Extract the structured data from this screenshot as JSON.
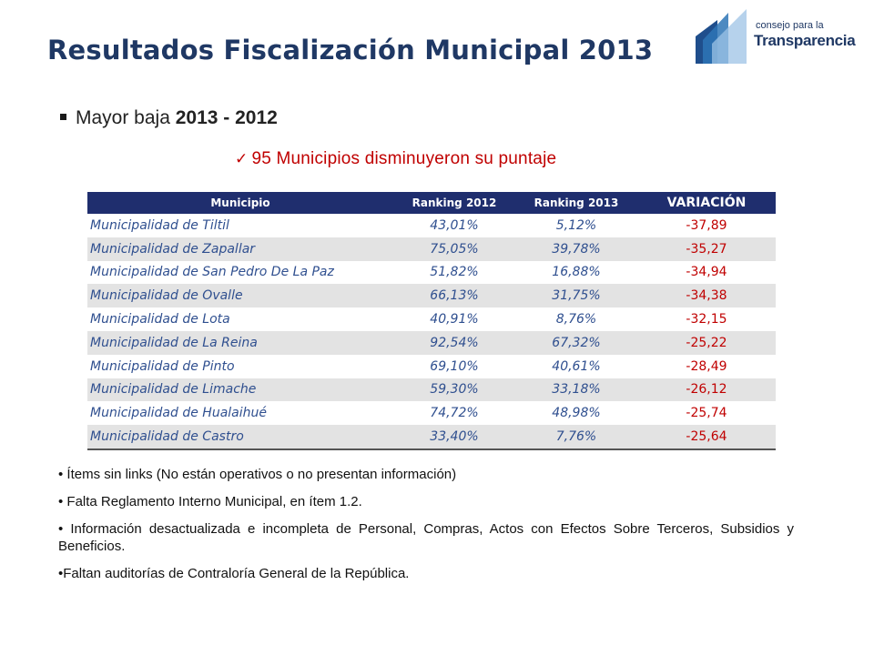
{
  "title": "Resultados Fiscalización Municipal 2013",
  "logo": {
    "line1": "consejo para la",
    "line2": "Transparencia"
  },
  "bullet": {
    "prefix": "Mayor baja ",
    "bold": "2013 - 2012"
  },
  "check": {
    "text": "95 Municipios disminuyeron su puntaje"
  },
  "table": {
    "headers": [
      "Municipio",
      "Ranking 2012",
      "Ranking 2013",
      "VARIACIÓN"
    ],
    "rows": [
      {
        "municipio": "Municipalidad de Tiltil",
        "r2012": "43,01%",
        "r2013": "5,12%",
        "variacion": "-37,89"
      },
      {
        "municipio": "Municipalidad de Zapallar",
        "r2012": "75,05%",
        "r2013": "39,78%",
        "variacion": "-35,27"
      },
      {
        "municipio": "Municipalidad de San Pedro De La Paz",
        "r2012": "51,82%",
        "r2013": "16,88%",
        "variacion": "-34,94"
      },
      {
        "municipio": "Municipalidad de Ovalle",
        "r2012": "66,13%",
        "r2013": "31,75%",
        "variacion": "-34,38"
      },
      {
        "municipio": "Municipalidad de Lota",
        "r2012": "40,91%",
        "r2013": "8,76%",
        "variacion": "-32,15"
      },
      {
        "municipio": "Municipalidad de La Reina",
        "r2012": "92,54%",
        "r2013": "67,32%",
        "variacion": "-25,22"
      },
      {
        "municipio": "Municipalidad de Pinto",
        "r2012": "69,10%",
        "r2013": "40,61%",
        "variacion": "-28,49"
      },
      {
        "municipio": "Municipalidad de Limache",
        "r2012": "59,30%",
        "r2013": "33,18%",
        "variacion": "-26,12"
      },
      {
        "municipio": "Municipalidad de Hualaihué",
        "r2012": "74,72%",
        "r2013": "48,98%",
        "variacion": "-25,74"
      },
      {
        "municipio": "Municipalidad de Castro",
        "r2012": "33,40%",
        "r2013": "7,76%",
        "variacion": "-25,64"
      }
    ]
  },
  "notes": [
    "• Ítems sin links (No están operativos o no presentan información)",
    "• Falta Reglamento Interno Municipal, en ítem 1.2.",
    "• Información desactualizada e incompleta de Personal, Compras, Actos con Efectos Sobre Terceros, Subsidios y Beneficios.",
    "•Faltan auditorías de Contraloría General de la República."
  ],
  "colors": {
    "title": "#1f3864",
    "header_bg": "#1f2e6e",
    "accent_red": "#c00000",
    "row_text": "#2f4f8f"
  }
}
